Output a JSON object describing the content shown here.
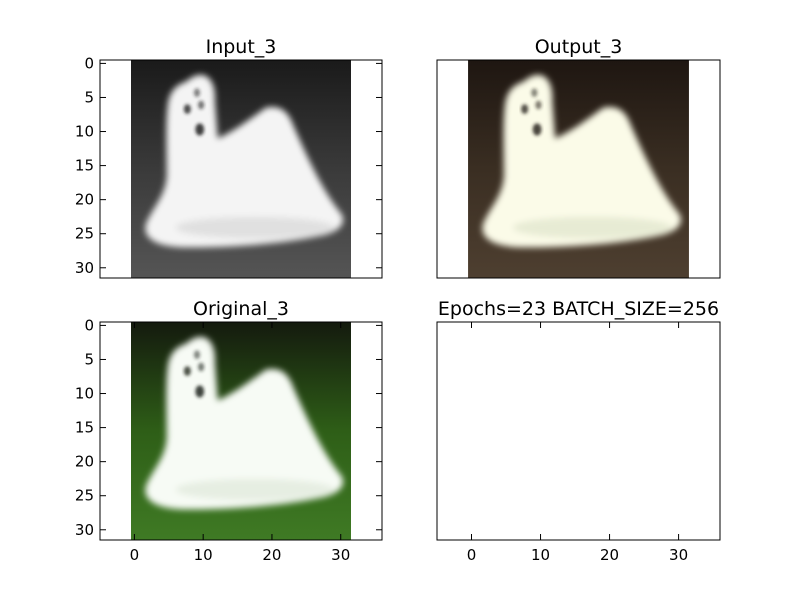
{
  "figure": {
    "colors": {
      "background": "#ffffff",
      "axis": "#000000"
    }
  },
  "chart_data": [
    {
      "type": "image",
      "title": "Input_3",
      "xlim": [
        -5,
        36
      ],
      "ylim": [
        31.5,
        -0.5
      ],
      "image_extent": [
        -0.5,
        31.5
      ],
      "xticks": [],
      "yticks": [
        0,
        5,
        10,
        15,
        20,
        25,
        30
      ],
      "image": {
        "content": "grayscale photo of a white fluffy dog on a dark background",
        "background": [
          "#1a1a1a",
          "#3a3a3a",
          "#555555"
        ],
        "subject": "#f4f4f4",
        "subject_shadow": "#cfcfcf",
        "detail": "#222222"
      }
    },
    {
      "type": "image",
      "title": "Output_3",
      "xlim": [
        -5,
        36
      ],
      "ylim": [
        31.5,
        -0.5
      ],
      "image_extent": [
        -0.5,
        31.5
      ],
      "xticks": [],
      "yticks": [],
      "image": {
        "content": "colorized reconstruction of the white dog on a dark brownish background",
        "background": [
          "#1e1611",
          "#3a2e22",
          "#4e3f30"
        ],
        "subject": "#fbfbe8",
        "subject_shadow": "#d7dfc2",
        "detail": "#2b2520"
      }
    },
    {
      "type": "image",
      "title": "Original_3",
      "xlim": [
        -5,
        36
      ],
      "ylim": [
        31.5,
        -0.5
      ],
      "image_extent": [
        -0.5,
        31.5
      ],
      "xticks": [
        0,
        10,
        20,
        30
      ],
      "yticks": [
        0,
        5,
        10,
        15,
        20,
        25,
        30
      ],
      "image": {
        "content": "color photo of a white fluffy dog on green grass",
        "background": [
          "#141a0e",
          "#2e5e17",
          "#3f7a24"
        ],
        "subject": "#f7fbf5",
        "subject_shadow": "#d8e4d2",
        "detail": "#20241d"
      }
    },
    {
      "type": "empty",
      "title": "Epochs=23 BATCH_SIZE=256",
      "xlim": [
        -5,
        36
      ],
      "ylim": [
        31.5,
        -0.5
      ],
      "xticks": [
        0,
        10,
        20,
        30
      ],
      "yticks": []
    }
  ]
}
